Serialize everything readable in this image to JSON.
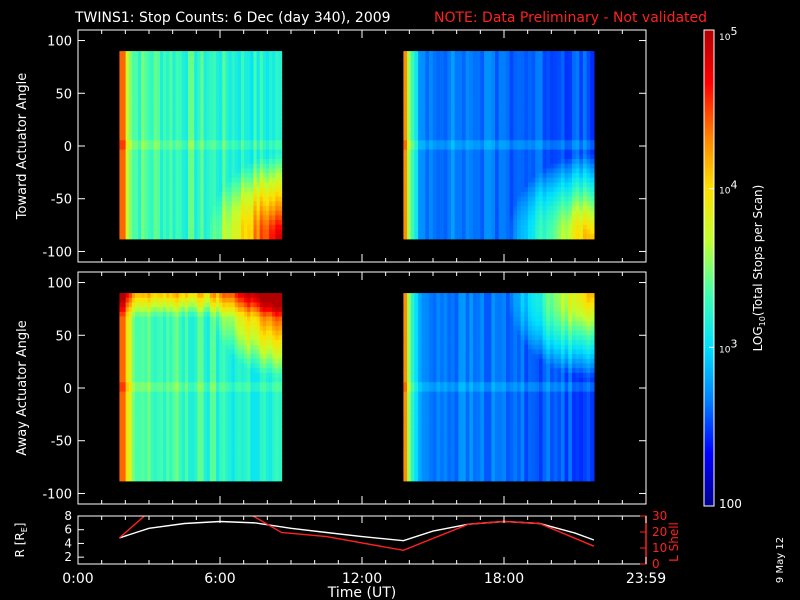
{
  "header": {
    "title": "TWINS1: Stop Counts:  6 Dec (day 340), 2009",
    "note": "NOTE: Data Preliminary - Not validated"
  },
  "side_date": "9 May 12",
  "chart_data": [
    {
      "type": "heatmap",
      "name": "toward",
      "ylabel": "Toward Actuator Angle",
      "ylim": [
        -110,
        110
      ],
      "yticks": [
        100,
        50,
        0,
        -50,
        -100
      ],
      "xlim": [
        0,
        24
      ],
      "segments": [
        {
          "start": 1.75,
          "end": 8.6,
          "level": "high",
          "hot_corner": "bottom-right"
        },
        {
          "start": 13.75,
          "end": 21.8,
          "level": "low",
          "hot_corner": "bottom-right"
        }
      ]
    },
    {
      "type": "heatmap",
      "name": "away",
      "ylabel": "Away Actuator Angle",
      "ylim": [
        -110,
        110
      ],
      "yticks": [
        100,
        50,
        0,
        -50,
        -100
      ],
      "xlim": [
        0,
        24
      ],
      "segments": [
        {
          "start": 1.75,
          "end": 8.6,
          "level": "high",
          "hot_corner": "top-right"
        },
        {
          "start": 13.75,
          "end": 21.8,
          "level": "low",
          "hot_corner": "top-right"
        }
      ]
    },
    {
      "type": "line",
      "name": "orbit",
      "xlabel": "Time (UT)",
      "xticks": [
        "0:00",
        "6:00",
        "12:00",
        "18:00",
        "23:59"
      ],
      "xtick_hours": [
        0,
        6,
        12,
        18,
        24
      ],
      "xlim": [
        0,
        24
      ],
      "left_axis": {
        "label": "R [RE]",
        "label_main": "R [R",
        "label_sub": "E",
        "label_end": "]",
        "ylim": [
          1,
          8
        ],
        "ticks": [
          "8",
          "6",
          "4",
          "2"
        ],
        "tick_values": [
          8,
          6,
          4,
          2
        ]
      },
      "right_axis": {
        "label": "L Shell",
        "ylim": [
          0,
          30
        ],
        "ticks": [
          "30",
          "20",
          "10",
          "0"
        ],
        "tick_values": [
          30,
          20,
          10,
          0
        ]
      },
      "series": [
        {
          "name": "R",
          "color": "#ffffff",
          "axis": "left",
          "x": [
            1.75,
            3,
            4.5,
            6,
            7.5,
            9,
            10.5,
            12,
            13.75,
            15,
            16.5,
            18,
            19.5,
            21,
            21.8
          ],
          "y": [
            4.8,
            6.2,
            6.9,
            7.2,
            7.0,
            6.2,
            5.6,
            5.0,
            4.4,
            5.8,
            6.8,
            7.2,
            6.9,
            5.5,
            4.5
          ]
        },
        {
          "name": "L Shell",
          "color": "#ff2020",
          "axis": "left-scale-red",
          "x": [
            1.75,
            3.0,
            3.1,
            7.0,
            7.2,
            8.6,
            10.5,
            13.75,
            16.5,
            18.0,
            19.5,
            21.8
          ],
          "y": [
            4.8,
            8.6,
            9.0,
            9.0,
            8.4,
            5.6,
            5.0,
            3.0,
            6.8,
            7.2,
            6.9,
            3.6
          ]
        }
      ]
    }
  ],
  "colorbar": {
    "label": "LOG10(Total Stops per Scan)",
    "label_pre": "LOG",
    "label_sub": "10",
    "label_post": "(Total Stops per Scan)",
    "ticks": [
      {
        "base": "10",
        "exp": "5"
      },
      {
        "base": "10",
        "exp": "4"
      },
      {
        "base": "10",
        "exp": "3"
      },
      {
        "base": "100",
        "exp": ""
      }
    ],
    "tick_log_values": [
      5,
      4,
      3,
      2
    ],
    "range_log": [
      2,
      5
    ],
    "colors": [
      "#00008c",
      "#0000ff",
      "#0080ff",
      "#00e0ff",
      "#40ffb0",
      "#c0ff30",
      "#ffe000",
      "#ff8000",
      "#ff0000",
      "#b00000"
    ]
  }
}
